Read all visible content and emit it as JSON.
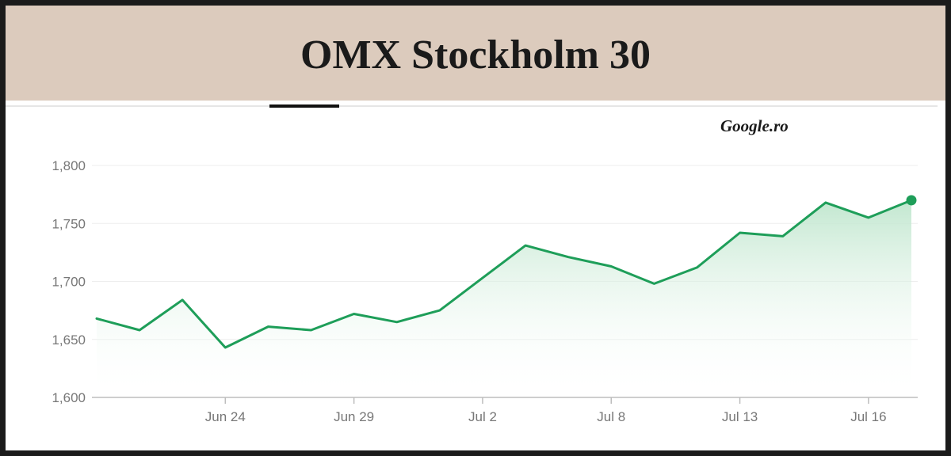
{
  "header": {
    "title": "OMX Stockholm 30"
  },
  "source": "Google.ro",
  "colors": {
    "header_bg": "#dccbbd",
    "line": "#1e9e59",
    "area_top": "#bfe6cd",
    "grid": "#eeeeee",
    "axis": "#bdbdbd"
  },
  "chart_data": {
    "type": "area",
    "title": "OMX Stockholm 30",
    "xlabel": "",
    "ylabel": "",
    "ylim": [
      1600,
      1800
    ],
    "yticks": [
      1600,
      1650,
      1700,
      1750,
      1800
    ],
    "ytick_labels": [
      "1,600",
      "1,650",
      "1,700",
      "1,750",
      "1,800"
    ],
    "x_tick_labels": [
      {
        "label": "Jun 24",
        "index": 3
      },
      {
        "label": "Jun 29",
        "index": 6
      },
      {
        "label": "Jul 2",
        "index": 9
      },
      {
        "label": "Jul 8",
        "index": 12
      },
      {
        "label": "Jul 13",
        "index": 15
      },
      {
        "label": "Jul 16",
        "index": 18
      }
    ],
    "values": [
      1668,
      1658,
      1684,
      1643,
      1661,
      1658,
      1672,
      1665,
      1675,
      1703,
      1731,
      1721,
      1713,
      1698,
      1712,
      1742,
      1739,
      1768,
      1755,
      1770
    ],
    "grid": true,
    "last_point_marker": true
  }
}
